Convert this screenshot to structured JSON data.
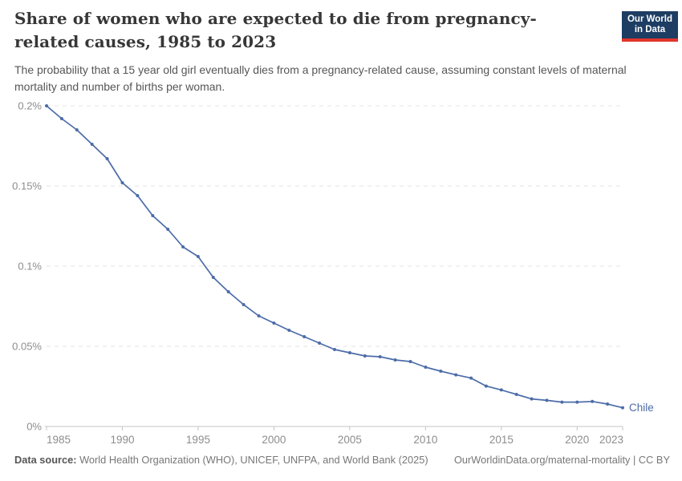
{
  "header": {
    "title": "Share of women who are expected to die from pregnancy-related causes, 1985 to 2023",
    "subtitle": "The probability that a 15 year old girl eventually dies from a pregnancy-related cause, assuming constant levels of maternal mortality and number of births per woman.",
    "logo": {
      "line1": "Our World",
      "line2": "in Data",
      "bg_color": "#1D3D63",
      "accent_color": "#E0352B"
    }
  },
  "chart_data": {
    "type": "line",
    "title": "Share of women who are expected to die from pregnancy-related causes, 1985 to 2023",
    "xlabel": "",
    "ylabel": "",
    "xlim": [
      1985,
      2023
    ],
    "ylim": [
      0,
      0.2
    ],
    "grid": "horizontal-dashed",
    "legend_position": "end-of-line-label",
    "x_ticks": [
      1985,
      1990,
      1995,
      2000,
      2005,
      2010,
      2015,
      2020,
      2023
    ],
    "y_ticks": [
      {
        "value": 0,
        "label": "0%"
      },
      {
        "value": 0.05,
        "label": "0.05%"
      },
      {
        "value": 0.1,
        "label": "0.1%"
      },
      {
        "value": 0.15,
        "label": "0.15%"
      },
      {
        "value": 0.2,
        "label": "0.2%"
      }
    ],
    "series": [
      {
        "name": "Chile",
        "color": "#4C6CA8",
        "x": [
          1985,
          1986,
          1987,
          1988,
          1989,
          1990,
          1991,
          1992,
          1993,
          1994,
          1995,
          1996,
          1997,
          1998,
          1999,
          2000,
          2001,
          2002,
          2003,
          2004,
          2005,
          2006,
          2007,
          2008,
          2009,
          2010,
          2011,
          2012,
          2013,
          2014,
          2015,
          2016,
          2017,
          2018,
          2019,
          2020,
          2021,
          2022,
          2023
        ],
        "values": [
          0.2,
          0.192,
          0.185,
          0.176,
          0.167,
          0.152,
          0.144,
          0.1315,
          0.123,
          0.112,
          0.106,
          0.093,
          0.084,
          0.076,
          0.069,
          0.0645,
          0.06,
          0.056,
          0.052,
          0.048,
          0.046,
          0.044,
          0.0435,
          0.0415,
          0.0405,
          0.037,
          0.0345,
          0.0322,
          0.0302,
          0.0252,
          0.0228,
          0.02,
          0.0172,
          0.0163,
          0.0152,
          0.0152,
          0.0156,
          0.014,
          0.0117
        ]
      }
    ],
    "colors": {
      "gridline": "#e3e3e3",
      "axis": "#c4c4c4",
      "tick_label": "#8d8d8d"
    }
  },
  "footer": {
    "source_label": "Data source:",
    "source_text": " World Health Organization (WHO), UNICEF, UNFPA, and World Bank (2025)",
    "attribution": "OurWorldinData.org/maternal-mortality | CC BY"
  }
}
